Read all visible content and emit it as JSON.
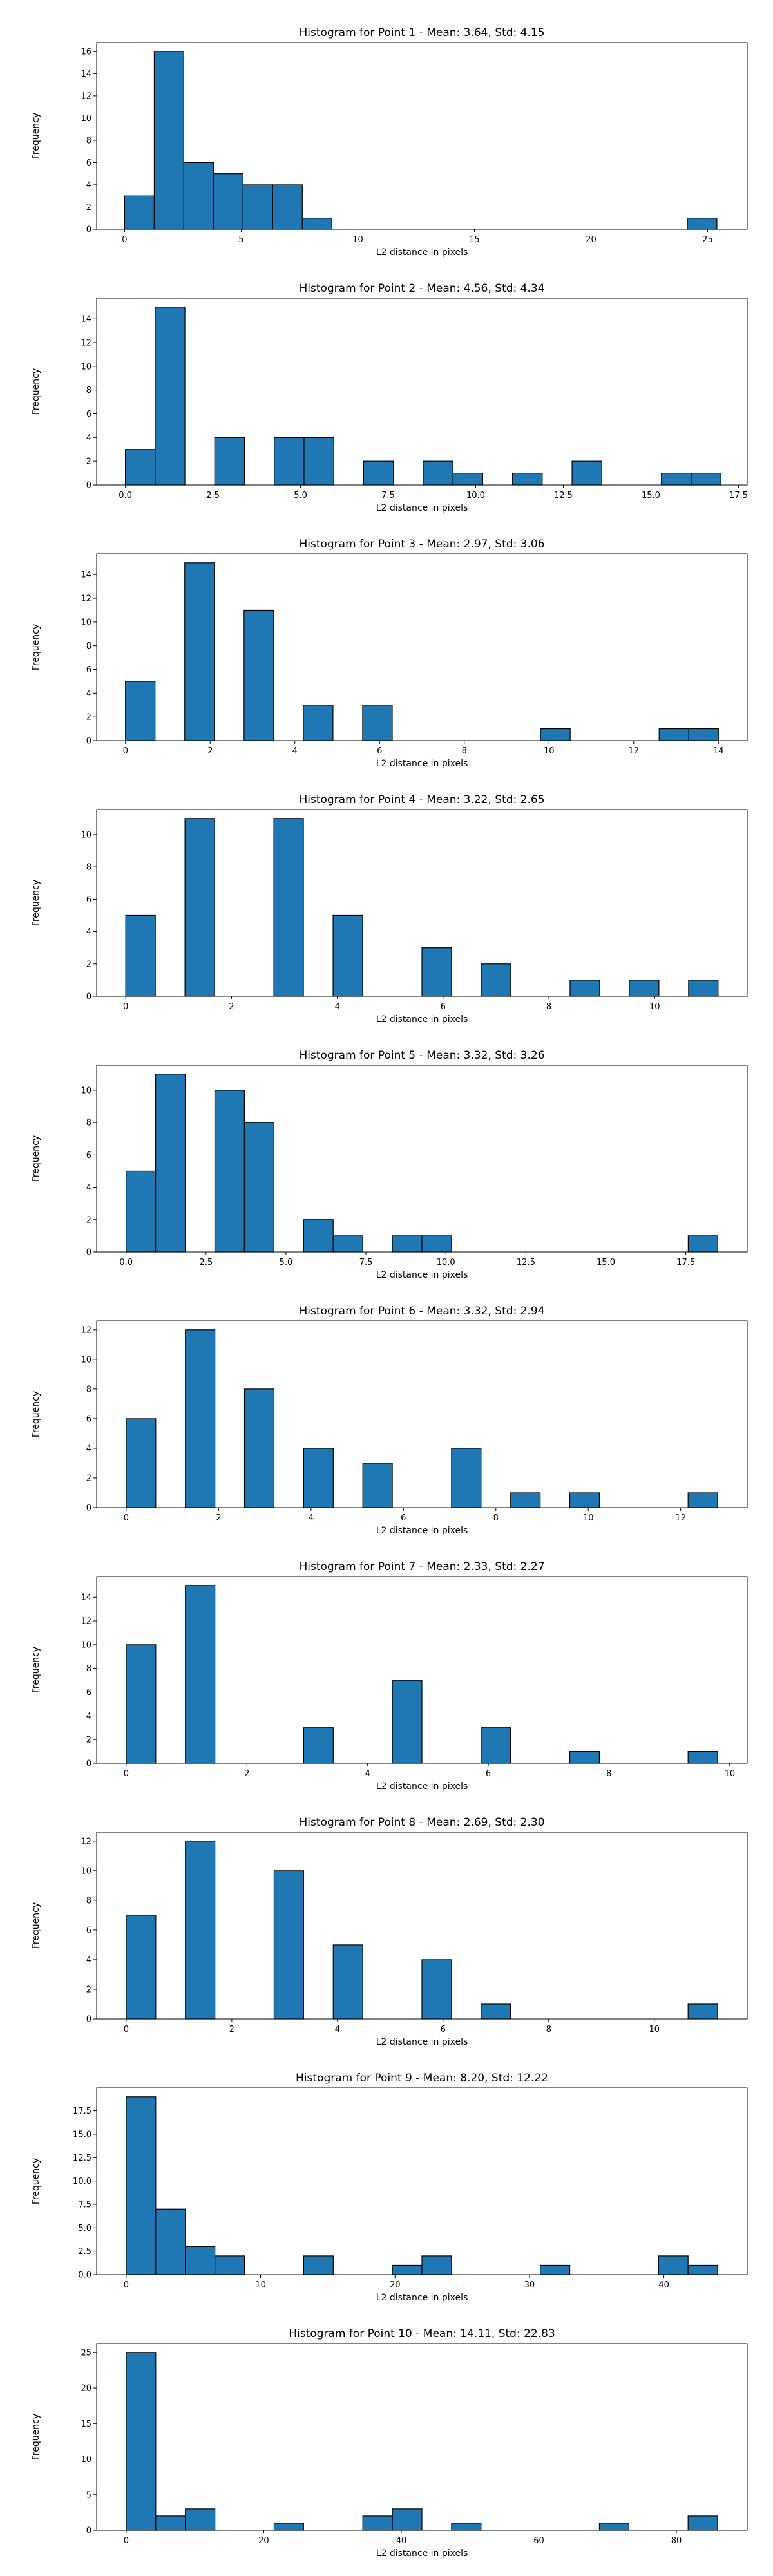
{
  "chart_data": [
    {
      "type": "bar",
      "title": "Histogram for Point 1 - Mean: 3.64, Std: 4.15",
      "xlabel": "L2 distance in pixels",
      "ylabel": "Frequency",
      "xlim": [
        -1.2,
        26.7
      ],
      "ylim": [
        0,
        16.8
      ],
      "xticks": [
        0,
        5,
        10,
        15,
        20,
        25
      ],
      "xtick_labels": [
        "0",
        "5",
        "10",
        "15",
        "20",
        "25"
      ],
      "yticks": [
        0,
        2,
        4,
        6,
        8,
        10,
        12,
        14,
        16
      ],
      "ytick_labels": [
        "0",
        "2",
        "4",
        "6",
        "8",
        "10",
        "12",
        "14",
        "16"
      ],
      "bin_edges": [
        0,
        1.27,
        2.54,
        3.81,
        5.08,
        6.35,
        7.62,
        8.89,
        10.16,
        11.43,
        12.7,
        13.97,
        15.24,
        16.51,
        17.78,
        19.05,
        20.32,
        21.59,
        22.86,
        24.13,
        25.4
      ],
      "values": [
        3,
        16,
        6,
        5,
        4,
        4,
        1,
        0,
        0,
        0,
        0,
        0,
        0,
        0,
        0,
        0,
        0,
        0,
        0,
        1
      ],
      "grid": false,
      "colors": {
        "bar_fill": "#1f77b4",
        "bar_edge": "#000000"
      }
    },
    {
      "type": "bar",
      "title": "Histogram for Point 2 - Mean: 4.56, Std: 4.34",
      "xlabel": "L2 distance in pixels",
      "ylabel": "Frequency",
      "xlim": [
        -0.82,
        17.75
      ],
      "ylim": [
        0,
        15.75
      ],
      "xticks": [
        0,
        2.5,
        5,
        7.5,
        10,
        12.5,
        15,
        17.5
      ],
      "xtick_labels": [
        "0.0",
        "2.5",
        "5.0",
        "7.5",
        "10.0",
        "12.5",
        "15.0",
        "17.5"
      ],
      "yticks": [
        0,
        2,
        4,
        6,
        8,
        10,
        12,
        14
      ],
      "ytick_labels": [
        "0",
        "2",
        "4",
        "6",
        "8",
        "10",
        "12",
        "14"
      ],
      "bin_edges": [
        0,
        0.85,
        1.7,
        2.55,
        3.4,
        4.25,
        5.1,
        5.95,
        6.8,
        7.65,
        8.5,
        9.35,
        10.2,
        11.05,
        11.9,
        12.75,
        13.6,
        14.45,
        15.3,
        16.15,
        17.0
      ],
      "values": [
        3,
        15,
        0,
        4,
        0,
        4,
        4,
        0,
        2,
        0,
        2,
        1,
        0,
        1,
        0,
        2,
        0,
        0,
        1,
        1
      ],
      "grid": false,
      "colors": {
        "bar_fill": "#1f77b4",
        "bar_edge": "#000000"
      }
    },
    {
      "type": "bar",
      "title": "Histogram for Point 3 - Mean: 2.97, Std: 3.06",
      "xlabel": "L2 distance in pixels",
      "ylabel": "Frequency",
      "xlim": [
        -0.68,
        14.68
      ],
      "ylim": [
        0,
        15.75
      ],
      "xticks": [
        0,
        2,
        4,
        6,
        8,
        10,
        12,
        14
      ],
      "xtick_labels": [
        "0",
        "2",
        "4",
        "6",
        "8",
        "10",
        "12",
        "14"
      ],
      "yticks": [
        0,
        2,
        4,
        6,
        8,
        10,
        12,
        14
      ],
      "ytick_labels": [
        "0",
        "2",
        "4",
        "6",
        "8",
        "10",
        "12",
        "14"
      ],
      "bin_edges": [
        0,
        0.7,
        1.4,
        2.1,
        2.8,
        3.5,
        4.2,
        4.9,
        5.6,
        6.3,
        7.0,
        7.7,
        8.4,
        9.1,
        9.8,
        10.5,
        11.2,
        11.9,
        12.6,
        13.3,
        14.0
      ],
      "values": [
        5,
        0,
        15,
        0,
        11,
        0,
        3,
        0,
        3,
        0,
        0,
        0,
        0,
        0,
        1,
        0,
        0,
        0,
        1,
        1
      ],
      "grid": false,
      "colors": {
        "bar_fill": "#1f77b4",
        "bar_edge": "#000000"
      }
    },
    {
      "type": "bar",
      "title": "Histogram for Point 4 - Mean: 3.22, Std: 2.65",
      "xlabel": "L2 distance in pixels",
      "ylabel": "Frequency",
      "xlim": [
        -0.55,
        11.75
      ],
      "ylim": [
        0,
        11.55
      ],
      "xticks": [
        0,
        2,
        4,
        6,
        8,
        10
      ],
      "xtick_labels": [
        "0",
        "2",
        "4",
        "6",
        "8",
        "10"
      ],
      "yticks": [
        0,
        2,
        4,
        6,
        8,
        10
      ],
      "ytick_labels": [
        "0",
        "2",
        "4",
        "6",
        "8",
        "10"
      ],
      "bin_edges": [
        0,
        0.56,
        1.12,
        1.68,
        2.24,
        2.8,
        3.36,
        3.92,
        4.48,
        5.04,
        5.6,
        6.16,
        6.72,
        7.28,
        7.84,
        8.4,
        8.96,
        9.52,
        10.08,
        10.64,
        11.2
      ],
      "values": [
        5,
        0,
        11,
        0,
        0,
        11,
        0,
        5,
        0,
        0,
        3,
        0,
        2,
        0,
        0,
        1,
        0,
        1,
        0,
        1
      ],
      "grid": false,
      "colors": {
        "bar_fill": "#1f77b4",
        "bar_edge": "#000000"
      }
    },
    {
      "type": "bar",
      "title": "Histogram for Point 5 - Mean: 3.32, Std: 3.26",
      "xlabel": "L2 distance in pixels",
      "ylabel": "Frequency",
      "xlim": [
        -0.92,
        19.42
      ],
      "ylim": [
        0,
        11.55
      ],
      "xticks": [
        0,
        2.5,
        5,
        7.5,
        10,
        12.5,
        15,
        17.5
      ],
      "xtick_labels": [
        "0.0",
        "2.5",
        "5.0",
        "7.5",
        "10.0",
        "12.5",
        "15.0",
        "17.5"
      ],
      "yticks": [
        0,
        2,
        4,
        6,
        8,
        10
      ],
      "ytick_labels": [
        "0",
        "2",
        "4",
        "6",
        "8",
        "10"
      ],
      "bin_edges": [
        0,
        0.925,
        1.85,
        2.775,
        3.7,
        4.625,
        5.55,
        6.475,
        7.4,
        8.325,
        9.25,
        10.175,
        11.1,
        12.025,
        12.95,
        13.875,
        14.8,
        15.725,
        16.65,
        17.575,
        18.5
      ],
      "values": [
        5,
        11,
        0,
        10,
        8,
        0,
        2,
        1,
        0,
        1,
        1,
        0,
        0,
        0,
        0,
        0,
        0,
        0,
        0,
        1
      ],
      "grid": false,
      "colors": {
        "bar_fill": "#1f77b4",
        "bar_edge": "#000000"
      }
    },
    {
      "type": "bar",
      "title": "Histogram for Point 6 - Mean: 3.32, Std: 2.94",
      "xlabel": "L2 distance in pixels",
      "ylabel": "Frequency",
      "xlim": [
        -0.64,
        13.44
      ],
      "ylim": [
        0,
        12.6
      ],
      "xticks": [
        0,
        2,
        4,
        6,
        8,
        10,
        12
      ],
      "xtick_labels": [
        "0",
        "2",
        "4",
        "6",
        "8",
        "10",
        "12"
      ],
      "yticks": [
        0,
        2,
        4,
        6,
        8,
        10,
        12
      ],
      "ytick_labels": [
        "0",
        "2",
        "4",
        "6",
        "8",
        "10",
        "12"
      ],
      "bin_edges": [
        0,
        0.64,
        1.28,
        1.92,
        2.56,
        3.2,
        3.84,
        4.48,
        5.12,
        5.76,
        6.4,
        7.04,
        7.68,
        8.32,
        8.96,
        9.6,
        10.24,
        10.88,
        11.52,
        12.16,
        12.8
      ],
      "values": [
        6,
        0,
        12,
        0,
        8,
        0,
        4,
        0,
        3,
        0,
        0,
        4,
        0,
        1,
        0,
        1,
        0,
        0,
        0,
        1
      ],
      "grid": false,
      "colors": {
        "bar_fill": "#1f77b4",
        "bar_edge": "#000000"
      }
    },
    {
      "type": "bar",
      "title": "Histogram for Point 7 - Mean: 2.33, Std: 2.27",
      "xlabel": "L2 distance in pixels",
      "ylabel": "Frequency",
      "xlim": [
        -0.49,
        10.29
      ],
      "ylim": [
        0,
        15.75
      ],
      "xticks": [
        0,
        2,
        4,
        6,
        8,
        10
      ],
      "xtick_labels": [
        "0",
        "2",
        "4",
        "6",
        "8",
        "10"
      ],
      "yticks": [
        0,
        2,
        4,
        6,
        8,
        10,
        12,
        14
      ],
      "ytick_labels": [
        "0",
        "2",
        "4",
        "6",
        "8",
        "10",
        "12",
        "14"
      ],
      "bin_edges": [
        0,
        0.49,
        0.98,
        1.47,
        1.96,
        2.45,
        2.94,
        3.43,
        3.92,
        4.41,
        4.9,
        5.39,
        5.88,
        6.37,
        6.86,
        7.35,
        7.84,
        8.33,
        8.82,
        9.31,
        9.8
      ],
      "values": [
        10,
        0,
        15,
        0,
        0,
        0,
        3,
        0,
        0,
        7,
        0,
        0,
        3,
        0,
        0,
        1,
        0,
        0,
        0,
        1
      ],
      "grid": false,
      "colors": {
        "bar_fill": "#1f77b4",
        "bar_edge": "#000000"
      }
    },
    {
      "type": "bar",
      "title": "Histogram for Point 8 - Mean: 2.69, Std: 2.30",
      "xlabel": "L2 distance in pixels",
      "ylabel": "Frequency",
      "xlim": [
        -0.56,
        11.76
      ],
      "ylim": [
        0,
        12.6
      ],
      "xticks": [
        0,
        2,
        4,
        6,
        8,
        10
      ],
      "xtick_labels": [
        "0",
        "2",
        "4",
        "6",
        "8",
        "10"
      ],
      "yticks": [
        0,
        2,
        4,
        6,
        8,
        10,
        12
      ],
      "ytick_labels": [
        "0",
        "2",
        "4",
        "6",
        "8",
        "10",
        "12"
      ],
      "bin_edges": [
        0,
        0.56,
        1.12,
        1.68,
        2.24,
        2.8,
        3.36,
        3.92,
        4.48,
        5.04,
        5.6,
        6.16,
        6.72,
        7.28,
        7.84,
        8.4,
        8.96,
        9.52,
        10.08,
        10.64,
        11.2
      ],
      "values": [
        7,
        0,
        12,
        0,
        0,
        10,
        0,
        5,
        0,
        0,
        4,
        0,
        1,
        0,
        0,
        0,
        0,
        0,
        0,
        1
      ],
      "grid": false,
      "colors": {
        "bar_fill": "#1f77b4",
        "bar_edge": "#000000"
      }
    },
    {
      "type": "bar",
      "title": "Histogram for Point 9 - Mean: 8.20, Std: 12.22",
      "xlabel": "L2 distance in pixels",
      "ylabel": "Frequency",
      "xlim": [
        -2.2,
        46.2
      ],
      "ylim": [
        0,
        19.95
      ],
      "xticks": [
        0,
        10,
        20,
        30,
        40
      ],
      "xtick_labels": [
        "0",
        "10",
        "20",
        "30",
        "40"
      ],
      "yticks": [
        0,
        2.5,
        5,
        7.5,
        10,
        12.5,
        15,
        17.5
      ],
      "ytick_labels": [
        "0.0",
        "2.5",
        "5.0",
        "7.5",
        "10.0",
        "12.5",
        "15.0",
        "17.5"
      ],
      "bin_edges": [
        0,
        2.2,
        4.4,
        6.6,
        8.8,
        11.0,
        13.2,
        15.4,
        17.6,
        19.8,
        22.0,
        24.2,
        26.4,
        28.6,
        30.8,
        33.0,
        35.2,
        37.4,
        39.6,
        41.8,
        44.0
      ],
      "values": [
        19,
        7,
        3,
        2,
        0,
        0,
        2,
        0,
        0,
        1,
        2,
        0,
        0,
        0,
        1,
        0,
        0,
        0,
        2,
        1
      ],
      "grid": false,
      "colors": {
        "bar_fill": "#1f77b4",
        "bar_edge": "#000000"
      }
    },
    {
      "type": "bar",
      "title": "Histogram for Point 10 - Mean: 14.11, Std: 22.83",
      "xlabel": "L2 distance in pixels",
      "ylabel": "Frequency",
      "xlim": [
        -4.3,
        90.3
      ],
      "ylim": [
        0,
        26.25
      ],
      "xticks": [
        0,
        20,
        40,
        60,
        80
      ],
      "xtick_labels": [
        "0",
        "20",
        "40",
        "60",
        "80"
      ],
      "yticks": [
        0,
        5,
        10,
        15,
        20,
        25
      ],
      "ytick_labels": [
        "0",
        "5",
        "10",
        "15",
        "20",
        "25"
      ],
      "bin_edges": [
        0,
        4.3,
        8.6,
        12.9,
        17.2,
        21.5,
        25.8,
        30.1,
        34.4,
        38.7,
        43.0,
        47.3,
        51.6,
        55.9,
        60.2,
        64.5,
        68.8,
        73.1,
        77.4,
        81.7,
        86.0
      ],
      "values": [
        25,
        2,
        3,
        0,
        0,
        1,
        0,
        0,
        2,
        3,
        0,
        1,
        0,
        0,
        0,
        0,
        1,
        0,
        0,
        2
      ],
      "grid": false,
      "colors": {
        "bar_fill": "#1f77b4",
        "bar_edge": "#000000"
      }
    }
  ]
}
